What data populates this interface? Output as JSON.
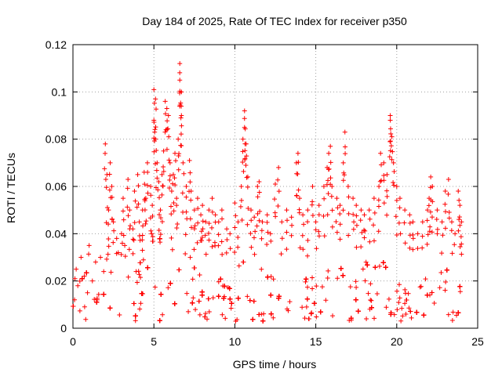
{
  "chart_data": {
    "type": "scatter",
    "title": "Day 184 of 2025, Rate Of TEC Index for receiver p350",
    "xlabel": "GPS time / hours",
    "ylabel": "ROTI / TECUs",
    "xlim": [
      0,
      25
    ],
    "ylim": [
      0,
      0.12
    ],
    "xticks": [
      0,
      5,
      10,
      15,
      20,
      25
    ],
    "xtick_labels": [
      "0",
      "5",
      "10",
      "15",
      "20",
      "25"
    ],
    "yticks": [
      0,
      0.02,
      0.04,
      0.06,
      0.08,
      0.1,
      0.12
    ],
    "ytick_labels": [
      "0",
      "0.02",
      "0.04",
      "0.06",
      "0.08",
      "0.1",
      "0.12"
    ],
    "grid": true,
    "marker": "plus",
    "color": "#ff0000",
    "series": [
      {
        "name": "ROTI",
        "points": [
          [
            0.1,
            0.012
          ],
          [
            0.2,
            0.025
          ],
          [
            0.3,
            0.018
          ],
          [
            0.5,
            0.03
          ],
          [
            0.7,
            0.022
          ],
          [
            0.9,
            0.015
          ],
          [
            1.0,
            0.035
          ],
          [
            1.2,
            0.02
          ],
          [
            1.4,
            0.028
          ],
          [
            1.5,
            0.012
          ],
          [
            1.7,
            0.03
          ],
          [
            1.9,
            0.024
          ],
          [
            2.0,
            0.078
          ],
          [
            2.1,
            0.065
          ],
          [
            2.2,
            0.05
          ],
          [
            2.3,
            0.07
          ],
          [
            2.4,
            0.06
          ],
          [
            2.5,
            0.045
          ],
          [
            2.7,
            0.038
          ],
          [
            2.8,
            0.032
          ],
          [
            3.0,
            0.04
          ],
          [
            3.1,
            0.055
          ],
          [
            3.2,
            0.035
          ],
          [
            3.4,
            0.063
          ],
          [
            3.5,
            0.05
          ],
          [
            3.7,
            0.042
          ],
          [
            3.8,
            0.058
          ],
          [
            4.0,
            0.065
          ],
          [
            4.1,
            0.045
          ],
          [
            4.3,
            0.05
          ],
          [
            4.4,
            0.066
          ],
          [
            4.5,
            0.055
          ],
          [
            4.6,
            0.07
          ],
          [
            4.8,
            0.06
          ],
          [
            4.9,
            0.052
          ],
          [
            5.0,
            0.101
          ],
          [
            5.0,
            0.088
          ],
          [
            5.1,
            0.097
          ],
          [
            5.1,
            0.08
          ],
          [
            5.2,
            0.07
          ],
          [
            5.3,
            0.062
          ],
          [
            5.4,
            0.05
          ],
          [
            5.5,
            0.065
          ],
          [
            5.6,
            0.075
          ],
          [
            5.7,
            0.096
          ],
          [
            5.8,
            0.093
          ],
          [
            5.9,
            0.09
          ],
          [
            6.0,
            0.07
          ],
          [
            6.1,
            0.058
          ],
          [
            6.2,
            0.065
          ],
          [
            6.3,
            0.074
          ],
          [
            6.4,
            0.055
          ],
          [
            6.5,
            0.08
          ],
          [
            6.6,
            0.105
          ],
          [
            6.6,
            0.112
          ],
          [
            6.7,
            0.1
          ],
          [
            6.7,
            0.09
          ],
          [
            6.8,
            0.07
          ],
          [
            7.0,
            0.06
          ],
          [
            7.2,
            0.071
          ],
          [
            7.3,
            0.058
          ],
          [
            7.5,
            0.05
          ],
          [
            7.7,
            0.055
          ],
          [
            7.9,
            0.048
          ],
          [
            8.0,
            0.052
          ],
          [
            8.2,
            0.045
          ],
          [
            8.4,
            0.05
          ],
          [
            8.6,
            0.055
          ],
          [
            8.8,
            0.048
          ],
          [
            9.0,
            0.045
          ],
          [
            9.2,
            0.05
          ],
          [
            9.5,
            0.042
          ],
          [
            9.7,
            0.04
          ],
          [
            10.0,
            0.053
          ],
          [
            10.2,
            0.045
          ],
          [
            10.4,
            0.06
          ],
          [
            10.5,
            0.08
          ],
          [
            10.6,
            0.092
          ],
          [
            10.6,
            0.085
          ],
          [
            10.7,
            0.078
          ],
          [
            10.8,
            0.064
          ],
          [
            11.0,
            0.05
          ],
          [
            11.2,
            0.047
          ],
          [
            11.4,
            0.06
          ],
          [
            11.5,
            0.062
          ],
          [
            11.7,
            0.045
          ],
          [
            12.0,
            0.048
          ],
          [
            12.2,
            0.04
          ],
          [
            12.5,
            0.061
          ],
          [
            12.7,
            0.068
          ],
          [
            12.9,
            0.045
          ],
          [
            13.2,
            0.05
          ],
          [
            13.5,
            0.047
          ],
          [
            13.8,
            0.07
          ],
          [
            13.9,
            0.074
          ],
          [
            14.0,
            0.055
          ],
          [
            14.2,
            0.048
          ],
          [
            14.5,
            0.05
          ],
          [
            14.8,
            0.06
          ],
          [
            15.0,
            0.045
          ],
          [
            15.2,
            0.052
          ],
          [
            15.5,
            0.06
          ],
          [
            15.7,
            0.068
          ],
          [
            15.8,
            0.074
          ],
          [
            15.9,
            0.077
          ],
          [
            16.0,
            0.06
          ],
          [
            16.3,
            0.055
          ],
          [
            16.5,
            0.052
          ],
          [
            16.7,
            0.07
          ],
          [
            16.8,
            0.083
          ],
          [
            17.0,
            0.06
          ],
          [
            17.3,
            0.055
          ],
          [
            17.5,
            0.052
          ],
          [
            17.8,
            0.05
          ],
          [
            18.0,
            0.048
          ],
          [
            18.3,
            0.05
          ],
          [
            18.6,
            0.055
          ],
          [
            18.9,
            0.06
          ],
          [
            19.0,
            0.074
          ],
          [
            19.2,
            0.07
          ],
          [
            19.4,
            0.065
          ],
          [
            19.6,
            0.09
          ],
          [
            19.6,
            0.088
          ],
          [
            19.7,
            0.081
          ],
          [
            19.8,
            0.07
          ],
          [
            20.0,
            0.06
          ],
          [
            20.2,
            0.055
          ],
          [
            20.5,
            0.05
          ],
          [
            20.8,
            0.048
          ],
          [
            21.0,
            0.045
          ],
          [
            21.3,
            0.04
          ],
          [
            21.6,
            0.045
          ],
          [
            21.9,
            0.05
          ],
          [
            22.0,
            0.055
          ],
          [
            22.1,
            0.064
          ],
          [
            22.2,
            0.06
          ],
          [
            22.5,
            0.05
          ],
          [
            22.8,
            0.045
          ],
          [
            23.0,
            0.058
          ],
          [
            23.2,
            0.063
          ],
          [
            23.4,
            0.045
          ],
          [
            23.6,
            0.04
          ],
          [
            23.8,
            0.058
          ],
          [
            23.9,
            0.052
          ],
          [
            24.0,
            0.045
          ]
        ],
        "dense_band": {
          "x_range": [
            0,
            24
          ],
          "y_base_min": 0.003,
          "y_base_max": 0.035,
          "count": 2600
        }
      }
    ]
  }
}
